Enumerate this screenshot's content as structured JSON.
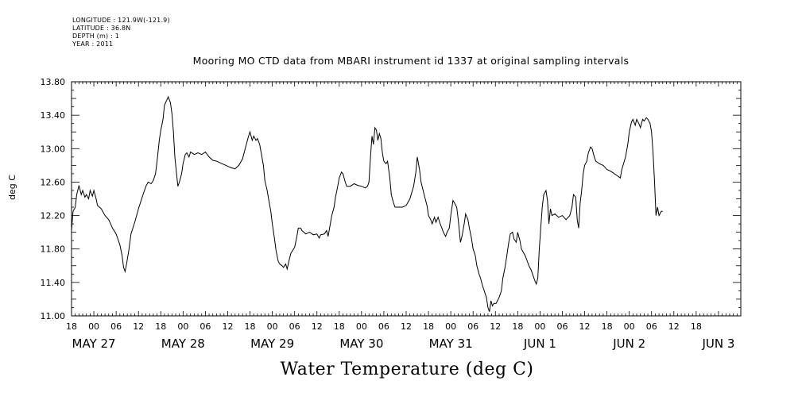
{
  "meta": {
    "longitude": "LONGITUDE : 121.9W(-121.9)",
    "latitude": "LATITUDE : 36.8N",
    "depth": "DEPTH (m) : 1",
    "year": "YEAR : 2011"
  },
  "chart_data": {
    "type": "line",
    "title": "Mooring MO CTD data from MBARI instrument id 1337 at original sampling intervals",
    "ylabel": "deg C",
    "xlabel": "Water Temperature (deg C)",
    "ylim": [
      11.0,
      13.8
    ],
    "yticks": [
      "11.00",
      "11.40",
      "11.80",
      "12.20",
      "12.60",
      "13.00",
      "13.40",
      "13.80"
    ],
    "x_unit": "hours since 2011-05-27 00:00",
    "xlim": [
      -6,
      174
    ],
    "xticks_hours": [
      "18",
      "00",
      "06",
      "12",
      "18",
      "00",
      "06",
      "12",
      "18",
      "00",
      "06",
      "12",
      "18",
      "00",
      "06",
      "12",
      "18",
      "00",
      "06",
      "12",
      "18",
      "00",
      "06",
      "12",
      "18",
      "00",
      "06",
      "12",
      "18"
    ],
    "day_labels": [
      "MAY 27",
      "MAY 28",
      "MAY 29",
      "MAY 30",
      "MAY 31",
      "JUN  1",
      "JUN  2",
      "JUN  3"
    ],
    "grid": false,
    "series": [
      {
        "points": [
          [
            -6,
            12.02
          ],
          [
            -5.6,
            12.25
          ],
          [
            -5,
            12.3
          ],
          [
            -4.6,
            12.45
          ],
          [
            -4,
            12.56
          ],
          [
            -3.4,
            12.45
          ],
          [
            -3,
            12.5
          ],
          [
            -2.4,
            12.42
          ],
          [
            -2,
            12.45
          ],
          [
            -1.4,
            12.4
          ],
          [
            -1,
            12.5
          ],
          [
            -0.4,
            12.43
          ],
          [
            0,
            12.5
          ],
          [
            0.6,
            12.4
          ],
          [
            1,
            12.32
          ],
          [
            2,
            12.28
          ],
          [
            3,
            12.2
          ],
          [
            4,
            12.15
          ],
          [
            5,
            12.05
          ],
          [
            6,
            11.98
          ],
          [
            7,
            11.85
          ],
          [
            7.6,
            11.72
          ],
          [
            8,
            11.58
          ],
          [
            8.4,
            11.53
          ],
          [
            8.8,
            11.62
          ],
          [
            9.4,
            11.78
          ],
          [
            10,
            11.98
          ],
          [
            11,
            12.12
          ],
          [
            12,
            12.28
          ],
          [
            13,
            12.42
          ],
          [
            14,
            12.55
          ],
          [
            14.6,
            12.6
          ],
          [
            15.4,
            12.58
          ],
          [
            16,
            12.62
          ],
          [
            16.6,
            12.7
          ],
          [
            17,
            12.85
          ],
          [
            17.6,
            13.1
          ],
          [
            18,
            13.22
          ],
          [
            18.6,
            13.35
          ],
          [
            19,
            13.52
          ],
          [
            19.6,
            13.58
          ],
          [
            20,
            13.62
          ],
          [
            20.6,
            13.55
          ],
          [
            21,
            13.42
          ],
          [
            21.4,
            13.2
          ],
          [
            21.8,
            12.9
          ],
          [
            22.2,
            12.72
          ],
          [
            22.6,
            12.55
          ],
          [
            23,
            12.6
          ],
          [
            23.6,
            12.7
          ],
          [
            24,
            12.82
          ],
          [
            24.6,
            12.93
          ],
          [
            25,
            12.95
          ],
          [
            25.6,
            12.9
          ],
          [
            26,
            12.96
          ],
          [
            27,
            12.93
          ],
          [
            28,
            12.95
          ],
          [
            29,
            12.93
          ],
          [
            30,
            12.96
          ],
          [
            31,
            12.9
          ],
          [
            32,
            12.86
          ],
          [
            33,
            12.85
          ],
          [
            34,
            12.83
          ],
          [
            35,
            12.81
          ],
          [
            36,
            12.79
          ],
          [
            37,
            12.77
          ],
          [
            38,
            12.76
          ],
          [
            39,
            12.8
          ],
          [
            40,
            12.88
          ],
          [
            41,
            13.05
          ],
          [
            41.6,
            13.15
          ],
          [
            42,
            13.2
          ],
          [
            42.6,
            13.1
          ],
          [
            43,
            13.15
          ],
          [
            43.6,
            13.1
          ],
          [
            44,
            13.12
          ],
          [
            44.6,
            13.05
          ],
          [
            45,
            12.95
          ],
          [
            45.6,
            12.8
          ],
          [
            46,
            12.62
          ],
          [
            46.6,
            12.5
          ],
          [
            47,
            12.4
          ],
          [
            47.6,
            12.25
          ],
          [
            48,
            12.1
          ],
          [
            48.6,
            11.92
          ],
          [
            49,
            11.78
          ],
          [
            49.6,
            11.65
          ],
          [
            50,
            11.62
          ],
          [
            50.6,
            11.6
          ],
          [
            51,
            11.58
          ],
          [
            51.6,
            11.62
          ],
          [
            52,
            11.56
          ],
          [
            52.6,
            11.68
          ],
          [
            53,
            11.75
          ],
          [
            54,
            11.82
          ],
          [
            54.6,
            11.95
          ],
          [
            55,
            12.05
          ],
          [
            55.6,
            12.05
          ],
          [
            56,
            12.02
          ],
          [
            57,
            11.98
          ],
          [
            58,
            12.0
          ],
          [
            59,
            11.97
          ],
          [
            60,
            11.98
          ],
          [
            60.6,
            11.93
          ],
          [
            61,
            11.97
          ],
          [
            62,
            11.98
          ],
          [
            62.6,
            12.02
          ],
          [
            63,
            11.95
          ],
          [
            63.6,
            12.1
          ],
          [
            64,
            12.2
          ],
          [
            64.6,
            12.3
          ],
          [
            65,
            12.42
          ],
          [
            65.6,
            12.55
          ],
          [
            66,
            12.65
          ],
          [
            66.6,
            12.72
          ],
          [
            67,
            12.7
          ],
          [
            67.6,
            12.6
          ],
          [
            68,
            12.55
          ],
          [
            69,
            12.55
          ],
          [
            70,
            12.58
          ],
          [
            71,
            12.56
          ],
          [
            72,
            12.55
          ],
          [
            73,
            12.53
          ],
          [
            73.6,
            12.55
          ],
          [
            74,
            12.6
          ],
          [
            74.4,
            12.9
          ],
          [
            74.8,
            13.15
          ],
          [
            75.2,
            13.05
          ],
          [
            75.6,
            13.25
          ],
          [
            76,
            13.22
          ],
          [
            76.4,
            13.1
          ],
          [
            76.8,
            13.18
          ],
          [
            77.2,
            13.12
          ],
          [
            77.6,
            12.95
          ],
          [
            78,
            12.85
          ],
          [
            78.6,
            12.82
          ],
          [
            79,
            12.85
          ],
          [
            79.6,
            12.65
          ],
          [
            80,
            12.45
          ],
          [
            80.6,
            12.35
          ],
          [
            81,
            12.3
          ],
          [
            82,
            12.3
          ],
          [
            83,
            12.3
          ],
          [
            84,
            12.32
          ],
          [
            85,
            12.4
          ],
          [
            86,
            12.55
          ],
          [
            86.6,
            12.72
          ],
          [
            87,
            12.9
          ],
          [
            87.6,
            12.75
          ],
          [
            88,
            12.6
          ],
          [
            89,
            12.42
          ],
          [
            89.6,
            12.32
          ],
          [
            90,
            12.2
          ],
          [
            90.6,
            12.15
          ],
          [
            91,
            12.1
          ],
          [
            91.6,
            12.18
          ],
          [
            92,
            12.12
          ],
          [
            92.6,
            12.18
          ],
          [
            93,
            12.12
          ],
          [
            93.6,
            12.05
          ],
          [
            94,
            12.0
          ],
          [
            94.6,
            11.95
          ],
          [
            95,
            12.0
          ],
          [
            95.6,
            12.05
          ],
          [
            96,
            12.2
          ],
          [
            96.6,
            12.38
          ],
          [
            97,
            12.35
          ],
          [
            97.6,
            12.3
          ],
          [
            98,
            12.15
          ],
          [
            98.6,
            11.88
          ],
          [
            99,
            11.95
          ],
          [
            99.6,
            12.1
          ],
          [
            100,
            12.22
          ],
          [
            100.6,
            12.15
          ],
          [
            101,
            12.05
          ],
          [
            101.6,
            11.92
          ],
          [
            102,
            11.8
          ],
          [
            102.6,
            11.72
          ],
          [
            103,
            11.6
          ],
          [
            103.6,
            11.5
          ],
          [
            104,
            11.45
          ],
          [
            104.6,
            11.35
          ],
          [
            105,
            11.3
          ],
          [
            105.6,
            11.22
          ],
          [
            106,
            11.1
          ],
          [
            106.4,
            11.05
          ],
          [
            106.8,
            11.18
          ],
          [
            107.2,
            11.12
          ],
          [
            107.6,
            11.15
          ],
          [
            108.2,
            11.15
          ],
          [
            109,
            11.22
          ],
          [
            109.6,
            11.3
          ],
          [
            110,
            11.45
          ],
          [
            110.6,
            11.58
          ],
          [
            111,
            11.7
          ],
          [
            111.6,
            11.88
          ],
          [
            112,
            11.98
          ],
          [
            112.6,
            12.0
          ],
          [
            113,
            11.92
          ],
          [
            113.6,
            11.88
          ],
          [
            114,
            12.0
          ],
          [
            114.6,
            11.9
          ],
          [
            115,
            11.8
          ],
          [
            116,
            11.72
          ],
          [
            116.6,
            11.65
          ],
          [
            117,
            11.6
          ],
          [
            117.6,
            11.55
          ],
          [
            118,
            11.5
          ],
          [
            118.6,
            11.42
          ],
          [
            119,
            11.38
          ],
          [
            119.4,
            11.45
          ],
          [
            119.8,
            11.8
          ],
          [
            120.2,
            12.05
          ],
          [
            120.6,
            12.3
          ],
          [
            121,
            12.45
          ],
          [
            121.6,
            12.5
          ],
          [
            122,
            12.38
          ],
          [
            122.4,
            12.1
          ],
          [
            122.8,
            12.28
          ],
          [
            123.2,
            12.2
          ],
          [
            124,
            12.22
          ],
          [
            125,
            12.18
          ],
          [
            126,
            12.2
          ],
          [
            127,
            12.15
          ],
          [
            128,
            12.2
          ],
          [
            128.6,
            12.3
          ],
          [
            129,
            12.45
          ],
          [
            129.6,
            12.42
          ],
          [
            130,
            12.15
          ],
          [
            130.4,
            12.05
          ],
          [
            130.8,
            12.35
          ],
          [
            131.2,
            12.5
          ],
          [
            131.6,
            12.7
          ],
          [
            132,
            12.8
          ],
          [
            132.6,
            12.85
          ],
          [
            133,
            12.95
          ],
          [
            133.6,
            13.02
          ],
          [
            134,
            13.0
          ],
          [
            134.6,
            12.9
          ],
          [
            135,
            12.85
          ],
          [
            136,
            12.82
          ],
          [
            137,
            12.8
          ],
          [
            138,
            12.75
          ],
          [
            139,
            12.73
          ],
          [
            140,
            12.7
          ],
          [
            141,
            12.67
          ],
          [
            141.6,
            12.65
          ],
          [
            142,
            12.75
          ],
          [
            143,
            12.9
          ],
          [
            143.6,
            13.05
          ],
          [
            144,
            13.2
          ],
          [
            144.6,
            13.32
          ],
          [
            145,
            13.35
          ],
          [
            145.6,
            13.28
          ],
          [
            146,
            13.35
          ],
          [
            146.6,
            13.3
          ],
          [
            147,
            13.25
          ],
          [
            147.6,
            13.35
          ],
          [
            148,
            13.33
          ],
          [
            148.6,
            13.37
          ],
          [
            149,
            13.35
          ],
          [
            149.6,
            13.3
          ],
          [
            150,
            13.2
          ],
          [
            150.4,
            12.95
          ],
          [
            150.8,
            12.6
          ],
          [
            151.2,
            12.2
          ],
          [
            151.6,
            12.3
          ],
          [
            152,
            12.2
          ],
          [
            152.6,
            12.25
          ],
          [
            153,
            12.25
          ]
        ]
      }
    ]
  }
}
